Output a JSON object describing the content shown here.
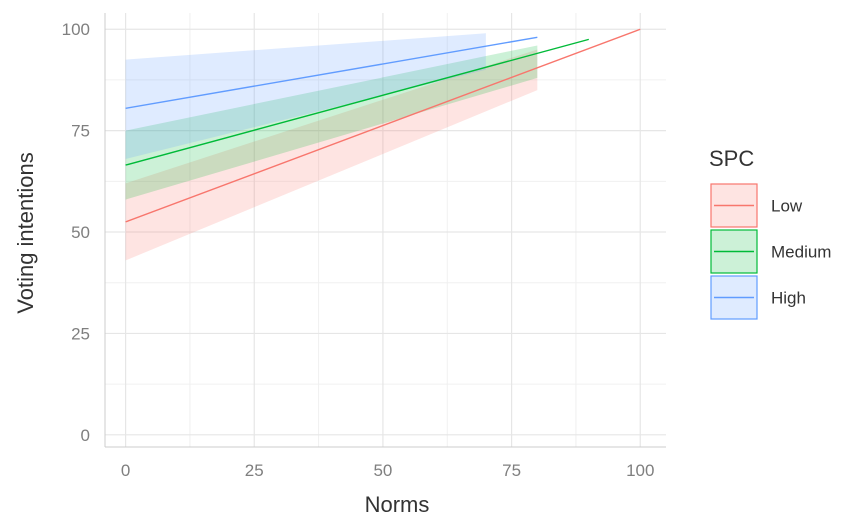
{
  "chart_data": {
    "type": "line",
    "title": "",
    "xlabel": "Norms",
    "ylabel": "Voting intentions",
    "xlim": [
      -4,
      105
    ],
    "ylim": [
      -3,
      104
    ],
    "xticks": [
      0,
      25,
      50,
      75,
      100
    ],
    "yticks": [
      0,
      25,
      50,
      75,
      100
    ],
    "x_tick_labels": [
      "0",
      "25",
      "50",
      "75",
      "100"
    ],
    "y_tick_labels": [
      "0",
      "25",
      "50",
      "75",
      "100"
    ],
    "grid": true,
    "legend": {
      "title": "SPC",
      "position": "right"
    },
    "series": [
      {
        "name": "Low",
        "color": "#f8766d",
        "fill_color": "#f8766d",
        "x": [
          0,
          100
        ],
        "y": [
          52.5,
          100
        ],
        "ribbon": {
          "x": [
            0,
            80
          ],
          "lower": [
            43,
            85
          ],
          "upper": [
            62,
            95
          ]
        }
      },
      {
        "name": "Medium",
        "color": "#00ba38",
        "fill_color": "#00ba38",
        "x": [
          0,
          90
        ],
        "y": [
          66.5,
          97.5
        ],
        "ribbon": {
          "x": [
            0,
            80
          ],
          "lower": [
            58,
            88
          ],
          "upper": [
            75,
            96
          ]
        }
      },
      {
        "name": "High",
        "color": "#619cff",
        "fill_color": "#619cff",
        "x": [
          0,
          80
        ],
        "y": [
          80.5,
          98
        ],
        "ribbon": {
          "x": [
            0,
            70
          ],
          "lower": [
            68,
            90
          ],
          "upper": [
            92.5,
            99
          ]
        }
      }
    ]
  }
}
